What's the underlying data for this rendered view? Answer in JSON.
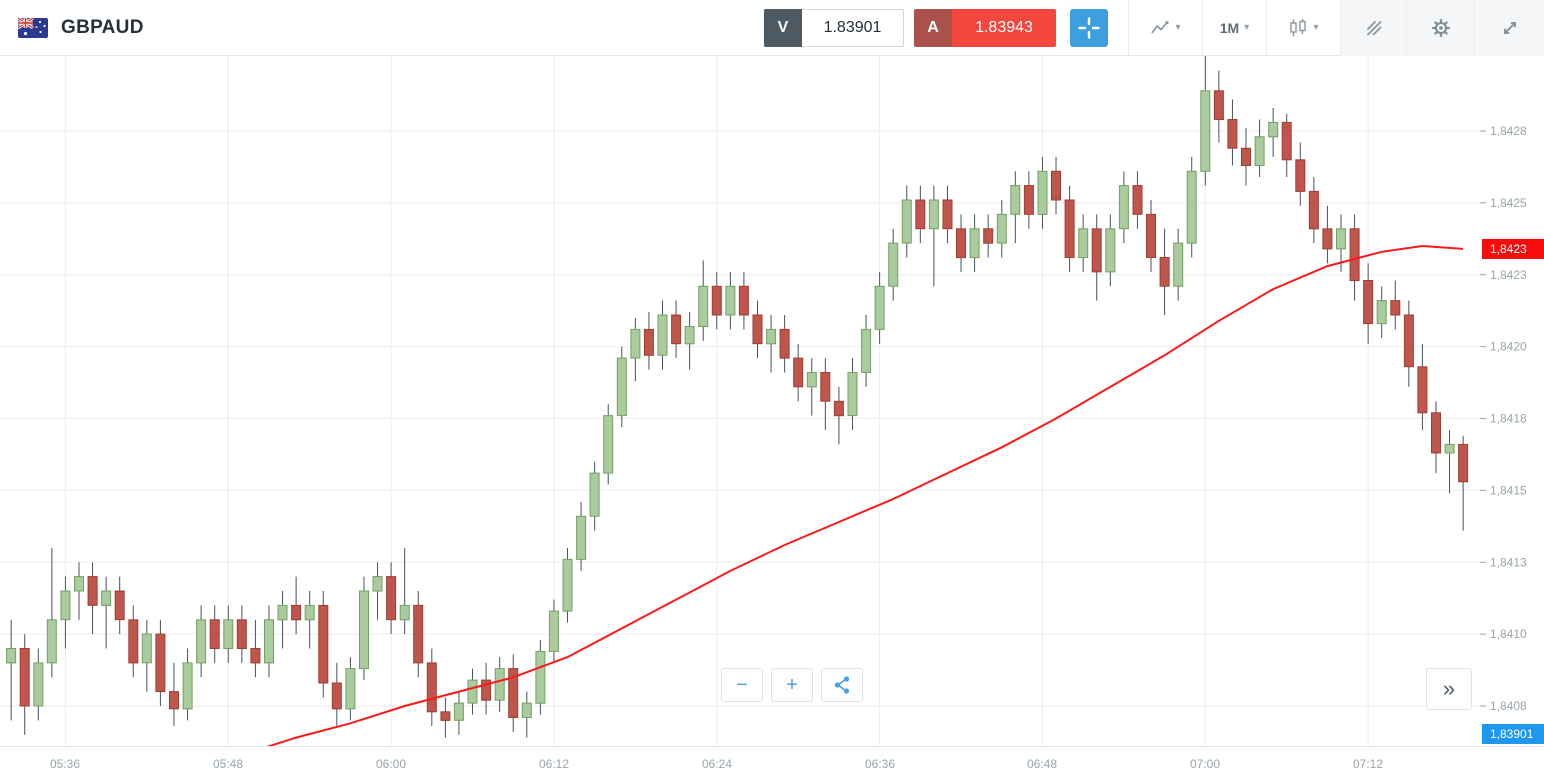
{
  "header": {
    "symbol": "GBPAUD",
    "sell": {
      "label": "V",
      "value": "1.83901"
    },
    "buy": {
      "label": "A",
      "value": "1.83943"
    },
    "timeframe_label": "1M"
  },
  "glyphs": {
    "caret": "▾",
    "minus": "−",
    "plus": "+",
    "scroll": "»"
  },
  "axis": {
    "price_labels": [
      "1,8428",
      "1,8425",
      "1,8423",
      "1,8420",
      "1,8418",
      "1,8415",
      "1,8413",
      "1,8410",
      "1,8408"
    ],
    "price_levels": [
      1.84275,
      1.8425,
      1.84225,
      1.842,
      1.84175,
      1.8415,
      1.84125,
      1.841,
      1.84075
    ],
    "time_labels": [
      "05:36",
      "05:48",
      "06:00",
      "06:12",
      "06:24",
      "06:36",
      "06:48",
      "07:00",
      "07:12"
    ],
    "ma_tag": "1,8423",
    "price_tag": "1,83901"
  },
  "colors": {
    "grid": "#ededee",
    "axis_text": "#9aa5ab",
    "wick": "#44535c",
    "candle_up": "#a9cb9d",
    "candle_up_border": "#74a065",
    "candle_down": "#bf564b",
    "candle_down_border": "#a03e34",
    "ma_line": "#fb1919",
    "tag_red": "#f70d0d",
    "tag_blue": "#1f97ee",
    "accent_blue": "#3b9fe0",
    "sell_badge": "#4d5963",
    "buy_badge": "#a9524b",
    "buy_value_bg": "#f2473f"
  },
  "chart_data": {
    "type": "candlestick",
    "symbol": "GBPAUD",
    "timeframe": "1M",
    "price_axis": {
      "min": 1.84075,
      "max": 1.84275,
      "step": 0.00025
    },
    "current_price": 1.83901,
    "ma_last_value": 1.84234,
    "candles": [
      [
        "05:32",
        1.8409,
        1.84105,
        1.8407,
        1.84095
      ],
      [
        "05:33",
        1.84095,
        1.841,
        1.84065,
        1.84075
      ],
      [
        "05:34",
        1.84075,
        1.84095,
        1.8407,
        1.8409
      ],
      [
        "05:35",
        1.8409,
        1.8413,
        1.84085,
        1.84105
      ],
      [
        "05:36",
        1.84105,
        1.8412,
        1.84095,
        1.84115
      ],
      [
        "05:37",
        1.84115,
        1.84125,
        1.84105,
        1.8412
      ],
      [
        "05:38",
        1.8412,
        1.84125,
        1.841,
        1.8411
      ],
      [
        "05:39",
        1.8411,
        1.8412,
        1.84095,
        1.84115
      ],
      [
        "05:40",
        1.84115,
        1.8412,
        1.841,
        1.84105
      ],
      [
        "05:41",
        1.84105,
        1.8411,
        1.84085,
        1.8409
      ],
      [
        "05:42",
        1.8409,
        1.84105,
        1.8408,
        1.841
      ],
      [
        "05:43",
        1.841,
        1.84105,
        1.84075,
        1.8408
      ],
      [
        "05:44",
        1.8408,
        1.8409,
        1.84068,
        1.84074
      ],
      [
        "05:45",
        1.84074,
        1.84095,
        1.8407,
        1.8409
      ],
      [
        "05:46",
        1.8409,
        1.8411,
        1.84085,
        1.84105
      ],
      [
        "05:47",
        1.84105,
        1.8411,
        1.8409,
        1.84095
      ],
      [
        "05:48",
        1.84095,
        1.8411,
        1.8409,
        1.84105
      ],
      [
        "05:49",
        1.84105,
        1.8411,
        1.8409,
        1.84095
      ],
      [
        "05:50",
        1.84095,
        1.84105,
        1.84085,
        1.8409
      ],
      [
        "05:51",
        1.8409,
        1.8411,
        1.84085,
        1.84105
      ],
      [
        "05:52",
        1.84105,
        1.84115,
        1.84095,
        1.8411
      ],
      [
        "05:53",
        1.8411,
        1.8412,
        1.841,
        1.84105
      ],
      [
        "05:54",
        1.84105,
        1.84115,
        1.84095,
        1.8411
      ],
      [
        "05:55",
        1.8411,
        1.84115,
        1.84078,
        1.84083
      ],
      [
        "05:56",
        1.84083,
        1.8409,
        1.84068,
        1.84074
      ],
      [
        "05:57",
        1.84074,
        1.84092,
        1.8407,
        1.84088
      ],
      [
        "05:58",
        1.84088,
        1.8412,
        1.84084,
        1.84115
      ],
      [
        "05:59",
        1.84115,
        1.84125,
        1.84105,
        1.8412
      ],
      [
        "06:00",
        1.8412,
        1.84125,
        1.841,
        1.84105
      ],
      [
        "06:01",
        1.84105,
        1.8413,
        1.841,
        1.8411
      ],
      [
        "06:02",
        1.8411,
        1.84115,
        1.84085,
        1.8409
      ],
      [
        "06:03",
        1.8409,
        1.84095,
        1.84068,
        1.84073
      ],
      [
        "06:04",
        1.84073,
        1.84078,
        1.84064,
        1.8407
      ],
      [
        "06:05",
        1.8407,
        1.8408,
        1.84065,
        1.84076
      ],
      [
        "06:06",
        1.84076,
        1.84088,
        1.84072,
        1.84084
      ],
      [
        "06:07",
        1.84084,
        1.8409,
        1.84072,
        1.84077
      ],
      [
        "06:08",
        1.84077,
        1.84092,
        1.84073,
        1.84088
      ],
      [
        "06:09",
        1.84088,
        1.84093,
        1.84066,
        1.84071
      ],
      [
        "06:10",
        1.84071,
        1.8408,
        1.84064,
        1.84076
      ],
      [
        "06:11",
        1.84076,
        1.84098,
        1.84072,
        1.84094
      ],
      [
        "06:12",
        1.84094,
        1.84112,
        1.8409,
        1.84108
      ],
      [
        "06:13",
        1.84108,
        1.8413,
        1.84104,
        1.84126
      ],
      [
        "06:14",
        1.84126,
        1.84146,
        1.84122,
        1.84141
      ],
      [
        "06:15",
        1.84141,
        1.8416,
        1.84136,
        1.84156
      ],
      [
        "06:16",
        1.84156,
        1.8418,
        1.84152,
        1.84176
      ],
      [
        "06:17",
        1.84176,
        1.842,
        1.84172,
        1.84196
      ],
      [
        "06:18",
        1.84196,
        1.8421,
        1.84188,
        1.84206
      ],
      [
        "06:19",
        1.84206,
        1.84212,
        1.84192,
        1.84197
      ],
      [
        "06:20",
        1.84197,
        1.84216,
        1.84192,
        1.84211
      ],
      [
        "06:21",
        1.84211,
        1.84216,
        1.84196,
        1.84201
      ],
      [
        "06:22",
        1.84201,
        1.84212,
        1.84192,
        1.84207
      ],
      [
        "06:23",
        1.84207,
        1.8423,
        1.84202,
        1.84221
      ],
      [
        "06:24",
        1.84221,
        1.84226,
        1.84206,
        1.84211
      ],
      [
        "06:25",
        1.84211,
        1.84226,
        1.84206,
        1.84221
      ],
      [
        "06:26",
        1.84221,
        1.84226,
        1.84206,
        1.84211
      ],
      [
        "06:27",
        1.84211,
        1.84216,
        1.84196,
        1.84201
      ],
      [
        "06:28",
        1.84201,
        1.84211,
        1.84191,
        1.84206
      ],
      [
        "06:29",
        1.84206,
        1.84211,
        1.84191,
        1.84196
      ],
      [
        "06:30",
        1.84196,
        1.84201,
        1.84181,
        1.84186
      ],
      [
        "06:31",
        1.84186,
        1.84196,
        1.84176,
        1.84191
      ],
      [
        "06:32",
        1.84191,
        1.84196,
        1.84171,
        1.84181
      ],
      [
        "06:33",
        1.84181,
        1.84186,
        1.84166,
        1.84176
      ],
      [
        "06:34",
        1.84176,
        1.84196,
        1.84171,
        1.84191
      ],
      [
        "06:35",
        1.84191,
        1.84211,
        1.84186,
        1.84206
      ],
      [
        "06:36",
        1.84206,
        1.84226,
        1.84201,
        1.84221
      ],
      [
        "06:37",
        1.84221,
        1.84241,
        1.84216,
        1.84236
      ],
      [
        "06:38",
        1.84236,
        1.84256,
        1.84231,
        1.84251
      ],
      [
        "06:39",
        1.84251,
        1.84256,
        1.84236,
        1.84241
      ],
      [
        "06:40",
        1.84241,
        1.84256,
        1.84221,
        1.84251
      ],
      [
        "06:41",
        1.84251,
        1.84256,
        1.84236,
        1.84241
      ],
      [
        "06:42",
        1.84241,
        1.84246,
        1.84226,
        1.84231
      ],
      [
        "06:43",
        1.84231,
        1.84246,
        1.84226,
        1.84241
      ],
      [
        "06:44",
        1.84241,
        1.84246,
        1.84231,
        1.84236
      ],
      [
        "06:45",
        1.84236,
        1.84251,
        1.84231,
        1.84246
      ],
      [
        "06:46",
        1.84246,
        1.84261,
        1.84236,
        1.84256
      ],
      [
        "06:47",
        1.84256,
        1.84261,
        1.84241,
        1.84246
      ],
      [
        "06:48",
        1.84246,
        1.84266,
        1.84241,
        1.84261
      ],
      [
        "06:49",
        1.84261,
        1.84266,
        1.84246,
        1.84251
      ],
      [
        "06:50",
        1.84251,
        1.84256,
        1.84226,
        1.84231
      ],
      [
        "06:51",
        1.84231,
        1.84246,
        1.84226,
        1.84241
      ],
      [
        "06:52",
        1.84241,
        1.84246,
        1.84216,
        1.84226
      ],
      [
        "06:53",
        1.84226,
        1.84246,
        1.84221,
        1.84241
      ],
      [
        "06:54",
        1.84241,
        1.84261,
        1.84236,
        1.84256
      ],
      [
        "06:55",
        1.84256,
        1.84261,
        1.84241,
        1.84246
      ],
      [
        "06:56",
        1.84246,
        1.84251,
        1.84226,
        1.84231
      ],
      [
        "06:57",
        1.84231,
        1.84241,
        1.84211,
        1.84221
      ],
      [
        "06:58",
        1.84221,
        1.84241,
        1.84216,
        1.84236
      ],
      [
        "06:59",
        1.84236,
        1.84266,
        1.84231,
        1.84261
      ],
      [
        "07:00",
        1.84261,
        1.84302,
        1.84256,
        1.84289
      ],
      [
        "07:01",
        1.84289,
        1.84296,
        1.84271,
        1.84279
      ],
      [
        "07:02",
        1.84279,
        1.84286,
        1.84263,
        1.84269
      ],
      [
        "07:03",
        1.84269,
        1.84276,
        1.84256,
        1.84263
      ],
      [
        "07:04",
        1.84263,
        1.84279,
        1.84259,
        1.84273
      ],
      [
        "07:05",
        1.84273,
        1.84283,
        1.84266,
        1.84278
      ],
      [
        "07:06",
        1.84278,
        1.84281,
        1.84259,
        1.84265
      ],
      [
        "07:07",
        1.84265,
        1.84271,
        1.84249,
        1.84254
      ],
      [
        "07:08",
        1.84254,
        1.84259,
        1.84236,
        1.84241
      ],
      [
        "07:09",
        1.84241,
        1.84249,
        1.84229,
        1.84234
      ],
      [
        "07:10",
        1.84234,
        1.84246,
        1.84226,
        1.84241
      ],
      [
        "07:11",
        1.84241,
        1.84246,
        1.84216,
        1.84223
      ],
      [
        "07:12",
        1.84223,
        1.84229,
        1.84201,
        1.84208
      ],
      [
        "07:13",
        1.84208,
        1.84221,
        1.84203,
        1.84216
      ],
      [
        "07:14",
        1.84216,
        1.84223,
        1.84206,
        1.84211
      ],
      [
        "07:15",
        1.84211,
        1.84216,
        1.84186,
        1.84193
      ],
      [
        "07:16",
        1.84193,
        1.84201,
        1.84171,
        1.84177
      ],
      [
        "07:17",
        1.84177,
        1.84181,
        1.84156,
        1.84163
      ],
      [
        "07:18",
        1.84163,
        1.84171,
        1.84149,
        1.84166
      ],
      [
        "07:19",
        1.84166,
        1.84169,
        1.84136,
        1.84153
      ]
    ],
    "moving_average": [
      [
        "05:49",
        1.84058
      ],
      [
        "05:53",
        1.84064
      ],
      [
        "05:57",
        1.84069
      ],
      [
        "06:01",
        1.84075
      ],
      [
        "06:05",
        1.8408
      ],
      [
        "06:09",
        1.84085
      ],
      [
        "06:13",
        1.84092
      ],
      [
        "06:17",
        1.84102
      ],
      [
        "06:21",
        1.84112
      ],
      [
        "06:25",
        1.84122
      ],
      [
        "06:29",
        1.84131
      ],
      [
        "06:33",
        1.84139
      ],
      [
        "06:37",
        1.84147
      ],
      [
        "06:41",
        1.84156
      ],
      [
        "06:45",
        1.84165
      ],
      [
        "06:49",
        1.84175
      ],
      [
        "06:53",
        1.84186
      ],
      [
        "06:57",
        1.84197
      ],
      [
        "07:01",
        1.84209
      ],
      [
        "07:05",
        1.8422
      ],
      [
        "07:09",
        1.84228
      ],
      [
        "07:13",
        1.84233
      ],
      [
        "07:16",
        1.84235
      ],
      [
        "07:19",
        1.84234
      ]
    ]
  }
}
